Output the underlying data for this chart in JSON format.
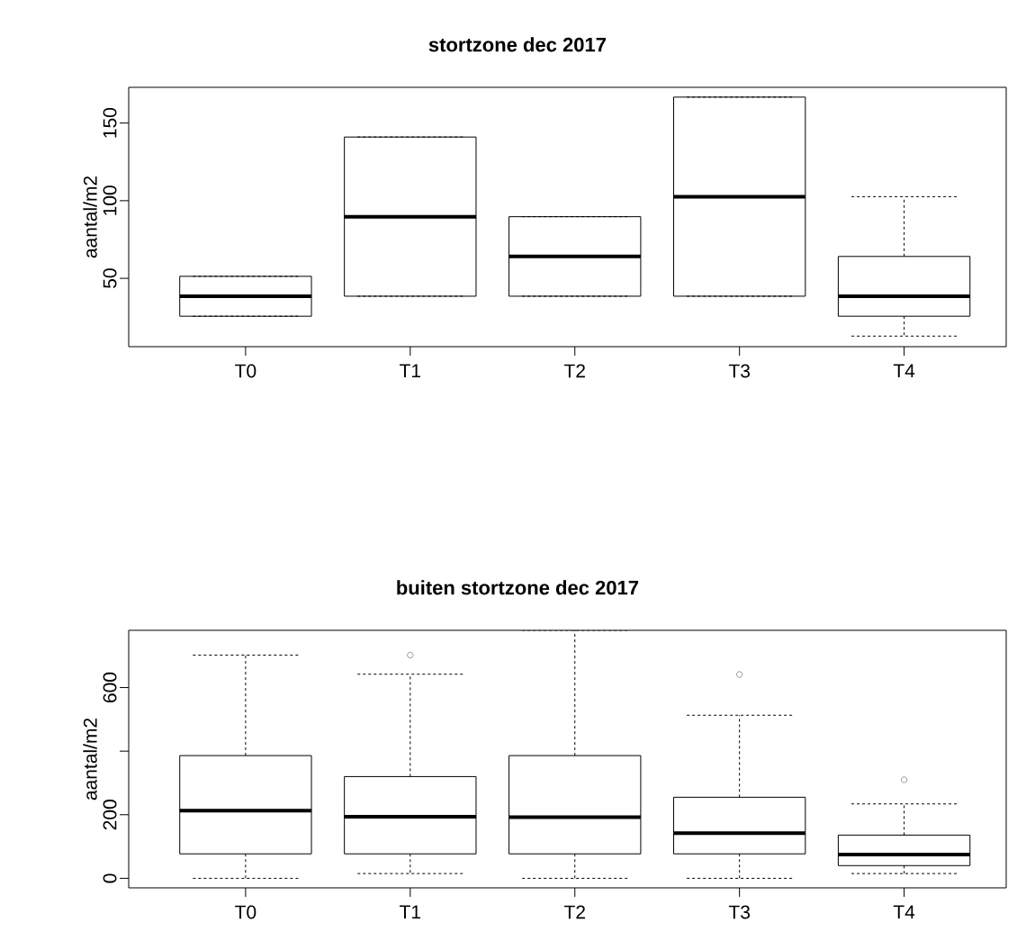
{
  "chart_data": [
    {
      "type": "box",
      "title": "stortzone dec 2017",
      "ylabel": "aantal/m2",
      "categories": [
        "T0",
        "T1",
        "T2",
        "T3",
        "T4"
      ],
      "boxes": [
        {
          "low": 25.6,
          "q1": 25.6,
          "median": 38.5,
          "q3": 51.3,
          "high": 51.3
        },
        {
          "low": 38.5,
          "q1": 38.5,
          "median": 89.7,
          "q3": 141,
          "high": 141
        },
        {
          "low": 38.5,
          "q1": 38.5,
          "median": 64.1,
          "q3": 89.7,
          "high": 89.7
        },
        {
          "low": 38.5,
          "q1": 38.5,
          "median": 102.6,
          "q3": 166.7,
          "high": 166.7
        },
        {
          "low": 12.8,
          "q1": 25.6,
          "median": 38.5,
          "q3": 64.1,
          "high": 102.6
        }
      ],
      "ylim": [
        6,
        173
      ],
      "yticks": [
        50,
        100,
        150
      ]
    },
    {
      "type": "box",
      "title": "buiten stortzone dec 2017",
      "ylabel": "aantal/m2",
      "categories": [
        "T0",
        "T1",
        "T2",
        "T3",
        "T4"
      ],
      "boxes": [
        {
          "low": 0,
          "q1": 77,
          "median": 213,
          "q3": 386,
          "high": 702
        },
        {
          "low": 15,
          "q1": 77,
          "median": 194,
          "q3": 320,
          "high": 642,
          "outliers": [
            702
          ]
        },
        {
          "low": 0,
          "q1": 77,
          "median": 192,
          "q3": 386,
          "high": 780
        },
        {
          "low": 0,
          "q1": 77,
          "median": 142,
          "q3": 255,
          "high": 513,
          "outliers": [
            641
          ]
        },
        {
          "low": 15,
          "q1": 40,
          "median": 75,
          "q3": 136,
          "high": 234,
          "outliers": [
            310
          ]
        }
      ],
      "ylim": [
        -30,
        780
      ],
      "yticks": [
        0,
        200,
        {
          "value": 400,
          "label": null
        },
        600
      ]
    }
  ]
}
